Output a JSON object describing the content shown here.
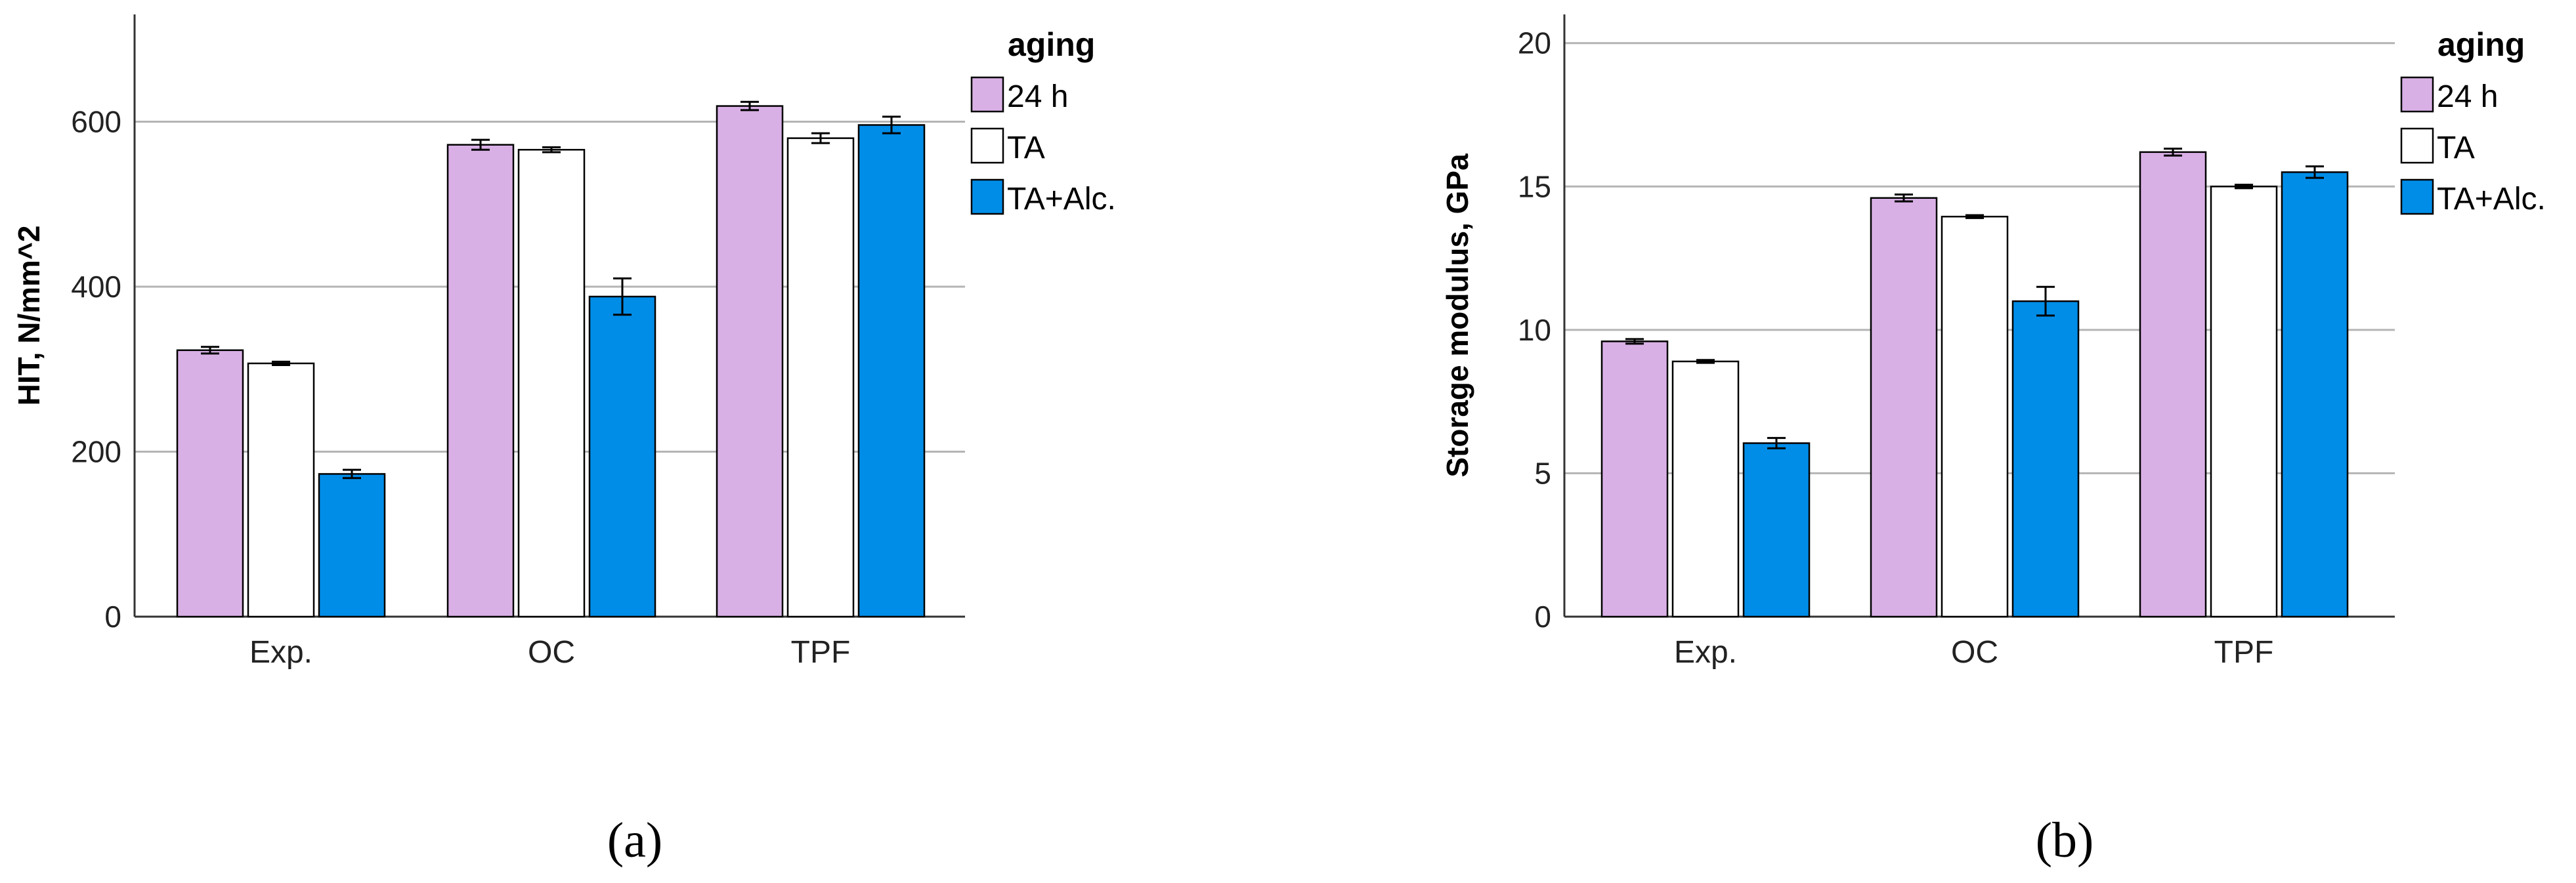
{
  "chart_data": [
    {
      "type": "bar",
      "panel_label": "(a)",
      "title": "",
      "xlabel": "",
      "ylabel": "HIT, N/mm^2",
      "ylim": [
        0,
        730
      ],
      "yticks": [
        0,
        200,
        400,
        600
      ],
      "grid": true,
      "categories": [
        "Exp.",
        "OC",
        "TPF"
      ],
      "legend": {
        "title": "aging",
        "position": "top-right"
      },
      "series": [
        {
          "name": "24 h",
          "color": "#d9b0e6",
          "values": [
            323,
            572,
            619
          ],
          "errors": [
            4,
            6,
            5
          ]
        },
        {
          "name": "TA",
          "color": "#ffffff",
          "values": [
            307,
            566,
            580
          ],
          "errors": [
            2,
            3,
            6
          ]
        },
        {
          "name": "TA+Alc.",
          "color": "#008de8",
          "values": [
            173,
            388,
            596
          ],
          "errors": [
            5,
            22,
            10
          ]
        }
      ]
    },
    {
      "type": "bar",
      "panel_label": "(b)",
      "title": "",
      "xlabel": "",
      "ylabel": "Storage modulus, GPa",
      "ylim": [
        0,
        21
      ],
      "yticks": [
        0,
        5,
        10,
        15,
        20
      ],
      "grid": true,
      "categories": [
        "Exp.",
        "OC",
        "TPF"
      ],
      "legend": {
        "title": "aging",
        "position": "top-right"
      },
      "series": [
        {
          "name": "24 h",
          "color": "#d9b0e6",
          "values": [
            9.6,
            14.6,
            16.2
          ],
          "errors": [
            0.08,
            0.12,
            0.12
          ]
        },
        {
          "name": "TA",
          "color": "#ffffff",
          "values": [
            8.9,
            13.95,
            15.0
          ],
          "errors": [
            0.05,
            0.05,
            0.06
          ]
        },
        {
          "name": "TA+Alc.",
          "color": "#008de8",
          "values": [
            6.05,
            11.0,
            15.5
          ],
          "errors": [
            0.18,
            0.5,
            0.2
          ]
        }
      ]
    }
  ]
}
